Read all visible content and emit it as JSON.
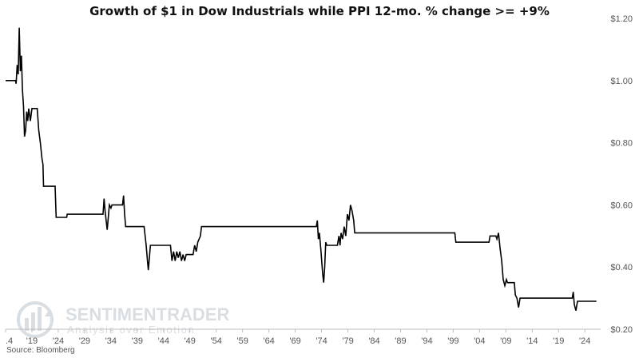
{
  "chart_data": {
    "type": "line",
    "title": "Growth of $1 in Dow Industrials while PPI 12-mo. % change >= +9%",
    "xlabel": "",
    "ylabel": "",
    "xlim": [
      1914.0,
      2027.0
    ],
    "ylim": [
      0.2,
      1.2
    ],
    "x_ticks": [
      {
        "x": 1914.0,
        "label": ".4"
      },
      {
        "x": 1919,
        "label": "'19"
      },
      {
        "x": 1924,
        "label": "'24"
      },
      {
        "x": 1929,
        "label": "'29"
      },
      {
        "x": 1934,
        "label": "'34"
      },
      {
        "x": 1939,
        "label": "'39"
      },
      {
        "x": 1944,
        "label": "'44"
      },
      {
        "x": 1949,
        "label": "'49"
      },
      {
        "x": 1954,
        "label": "'54"
      },
      {
        "x": 1959,
        "label": "'59"
      },
      {
        "x": 1964,
        "label": "'64"
      },
      {
        "x": 1969,
        "label": "'69"
      },
      {
        "x": 1974,
        "label": "'74"
      },
      {
        "x": 1979,
        "label": "'79"
      },
      {
        "x": 1984,
        "label": "'84"
      },
      {
        "x": 1989,
        "label": "'89"
      },
      {
        "x": 1994,
        "label": "'94"
      },
      {
        "x": 1999,
        "label": "'99"
      },
      {
        "x": 2004,
        "label": "'04"
      },
      {
        "x": 2009,
        "label": "'09"
      },
      {
        "x": 2014,
        "label": "'14"
      },
      {
        "x": 2019,
        "label": "'19"
      },
      {
        "x": 2024,
        "label": "'24"
      }
    ],
    "y_ticks": [
      {
        "y": 1.2,
        "label": "$1.20"
      },
      {
        "y": 1.0,
        "label": "$1.00"
      },
      {
        "y": 0.8,
        "label": "$0.80"
      },
      {
        "y": 0.6,
        "label": "$0.60"
      },
      {
        "y": 0.4,
        "label": "$0.40"
      },
      {
        "y": 0.2,
        "label": "$0.20"
      }
    ],
    "grid": false,
    "line_color": "#000000",
    "series": [
      {
        "points": [
          [
            1914.0,
            1.0
          ],
          [
            1915.9,
            1.0
          ],
          [
            1916.0,
            0.99
          ],
          [
            1916.2,
            1.05
          ],
          [
            1916.4,
            1.02
          ],
          [
            1916.6,
            1.17
          ],
          [
            1916.8,
            1.03
          ],
          [
            1917.0,
            1.08
          ],
          [
            1917.2,
            0.97
          ],
          [
            1917.4,
            0.92
          ],
          [
            1917.6,
            0.82
          ],
          [
            1917.8,
            0.84
          ],
          [
            1918.0,
            0.9
          ],
          [
            1918.2,
            0.87
          ],
          [
            1918.4,
            0.91
          ],
          [
            1918.7,
            0.87
          ],
          [
            1919.0,
            0.91
          ],
          [
            1920.0,
            0.91
          ],
          [
            1920.3,
            0.84
          ],
          [
            1920.6,
            0.8
          ],
          [
            1920.9,
            0.75
          ],
          [
            1921.1,
            0.73
          ],
          [
            1921.2,
            0.66
          ],
          [
            1923.4,
            0.66
          ],
          [
            1923.6,
            0.56
          ],
          [
            1925.6,
            0.56
          ],
          [
            1925.7,
            0.57
          ],
          [
            1932.5,
            0.57
          ],
          [
            1932.7,
            0.62
          ],
          [
            1932.9,
            0.58
          ],
          [
            1933.1,
            0.55
          ],
          [
            1933.3,
            0.52
          ],
          [
            1933.5,
            0.56
          ],
          [
            1933.7,
            0.6
          ],
          [
            1934.0,
            0.59
          ],
          [
            1934.2,
            0.6
          ],
          [
            1936.2,
            0.6
          ],
          [
            1936.4,
            0.63
          ],
          [
            1936.6,
            0.57
          ],
          [
            1936.8,
            0.53
          ],
          [
            1940.3,
            0.53
          ],
          [
            1940.5,
            0.5
          ],
          [
            1940.7,
            0.47
          ],
          [
            1940.9,
            0.43
          ],
          [
            1941.1,
            0.39
          ],
          [
            1941.3,
            0.43
          ],
          [
            1941.5,
            0.47
          ],
          [
            1945.3,
            0.47
          ],
          [
            1945.6,
            0.42
          ],
          [
            1945.9,
            0.45
          ],
          [
            1946.2,
            0.42
          ],
          [
            1946.5,
            0.45
          ],
          [
            1946.8,
            0.43
          ],
          [
            1947.1,
            0.45
          ],
          [
            1947.4,
            0.42
          ],
          [
            1947.7,
            0.44
          ],
          [
            1948.0,
            0.42
          ],
          [
            1948.3,
            0.44
          ],
          [
            1948.6,
            0.44
          ],
          [
            1949.6,
            0.44
          ],
          [
            1949.9,
            0.47
          ],
          [
            1950.2,
            0.45
          ],
          [
            1950.5,
            0.48
          ],
          [
            1951.0,
            0.5
          ],
          [
            1951.2,
            0.53
          ],
          [
            1973.0,
            0.53
          ],
          [
            1973.2,
            0.55
          ],
          [
            1973.4,
            0.49
          ],
          [
            1973.6,
            0.51
          ],
          [
            1973.9,
            0.45
          ],
          [
            1974.2,
            0.38
          ],
          [
            1974.4,
            0.35
          ],
          [
            1974.6,
            0.4
          ],
          [
            1974.8,
            0.48
          ],
          [
            1975.0,
            0.47
          ],
          [
            1977.0,
            0.47
          ],
          [
            1977.3,
            0.5
          ],
          [
            1977.5,
            0.47
          ],
          [
            1977.7,
            0.51
          ],
          [
            1978.0,
            0.49
          ],
          [
            1978.3,
            0.53
          ],
          [
            1978.6,
            0.5
          ],
          [
            1978.9,
            0.57
          ],
          [
            1979.2,
            0.55
          ],
          [
            1979.5,
            0.6
          ],
          [
            1979.8,
            0.58
          ],
          [
            1980.1,
            0.55
          ],
          [
            1980.3,
            0.51
          ],
          [
            1999.3,
            0.51
          ],
          [
            1999.5,
            0.48
          ],
          [
            2005.8,
            0.48
          ],
          [
            2006.0,
            0.5
          ],
          [
            2007.1,
            0.5
          ],
          [
            2007.3,
            0.49
          ],
          [
            2007.6,
            0.51
          ],
          [
            2007.9,
            0.46
          ],
          [
            2008.2,
            0.42
          ],
          [
            2008.5,
            0.36
          ],
          [
            2008.8,
            0.34
          ],
          [
            2009.1,
            0.36
          ],
          [
            2009.3,
            0.35
          ],
          [
            2010.6,
            0.35
          ],
          [
            2010.8,
            0.31
          ],
          [
            2011.1,
            0.3
          ],
          [
            2011.4,
            0.27
          ],
          [
            2011.7,
            0.3
          ],
          [
            2021.6,
            0.3
          ],
          [
            2021.8,
            0.32
          ],
          [
            2022.0,
            0.28
          ],
          [
            2022.3,
            0.26
          ],
          [
            2022.6,
            0.29
          ],
          [
            2026.2,
            0.29
          ]
        ]
      }
    ]
  },
  "source": "Source: Bloomberg",
  "watermark": {
    "brand": "SENTIMENTRADER",
    "tagline": "Analysis over Emotion"
  }
}
